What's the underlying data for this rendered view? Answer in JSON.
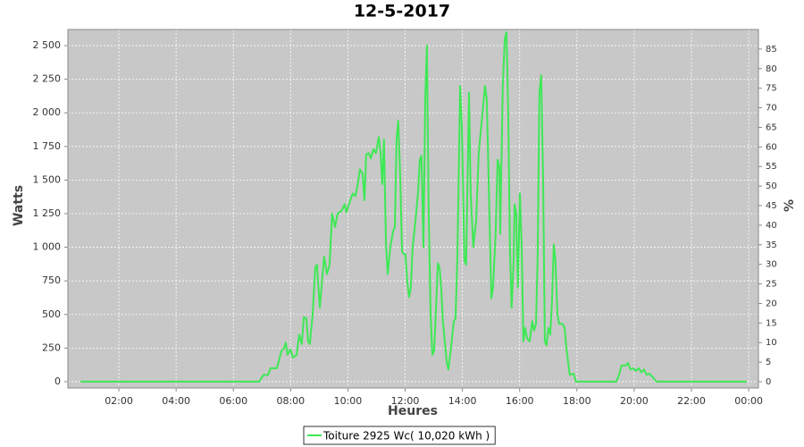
{
  "chart_data": {
    "type": "line",
    "title": "12-5-2017",
    "x_label": "Heures",
    "y_label": "Watts",
    "y2_label": "%",
    "grid": true,
    "legend": "bottom",
    "xlim": [
      0.22,
      24.34
    ],
    "xticks": [
      {
        "value": 2,
        "label": "02:00"
      },
      {
        "value": 4,
        "label": "04:00"
      },
      {
        "value": 6,
        "label": "06:00"
      },
      {
        "value": 8,
        "label": "08:00"
      },
      {
        "value": 10,
        "label": "10:00"
      },
      {
        "value": 12,
        "label": "12:00"
      },
      {
        "value": 14,
        "label": "14:00"
      },
      {
        "value": 16,
        "label": "16:00"
      },
      {
        "value": 18,
        "label": "18:00"
      },
      {
        "value": 20,
        "label": "20:00"
      },
      {
        "value": 22,
        "label": "22:00"
      },
      {
        "value": 24,
        "label": "00:00"
      }
    ],
    "ylim": [
      -47,
      2620
    ],
    "yticks": [
      0,
      250,
      500,
      750,
      {
        "value": 1000,
        "label": "1 000"
      },
      {
        "value": 1250,
        "label": "1 250"
      },
      {
        "value": 1500,
        "label": "1 500"
      },
      {
        "value": 1750,
        "label": "1 750"
      },
      {
        "value": 2000,
        "label": "2 000"
      },
      {
        "value": 2250,
        "label": "2 250"
      },
      {
        "value": 2500,
        "label": "2 500"
      }
    ],
    "y2lim": [
      -1.6,
      90
    ],
    "y2ticks": [
      0,
      5,
      10,
      15,
      20,
      25,
      30,
      35,
      40,
      45,
      50,
      55,
      60,
      65,
      70,
      75,
      80,
      85
    ],
    "x": [
      0.66,
      6.9,
      7.05,
      7.21,
      7.3,
      7.52,
      7.68,
      7.77,
      7.83,
      7.89,
      7.99,
      8.08,
      8.21,
      8.3,
      8.39,
      8.46,
      8.55,
      8.61,
      8.67,
      8.77,
      8.86,
      8.92,
      9.02,
      9.08,
      9.17,
      9.27,
      9.36,
      9.45,
      9.55,
      9.64,
      9.77,
      9.89,
      9.95,
      10.08,
      10.17,
      10.26,
      10.33,
      10.42,
      10.51,
      10.58,
      10.64,
      10.73,
      10.8,
      10.89,
      10.98,
      11.08,
      11.14,
      11.2,
      11.26,
      11.33,
      11.39,
      11.48,
      11.58,
      11.64,
      11.7,
      11.76,
      11.83,
      11.89,
      11.95,
      12.01,
      12.07,
      12.14,
      12.2,
      12.26,
      12.36,
      12.45,
      12.51,
      12.57,
      12.64,
      12.7,
      12.76,
      12.82,
      12.89,
      12.95,
      13.01,
      13.07,
      13.14,
      13.2,
      13.26,
      13.32,
      13.45,
      13.51,
      13.6,
      13.7,
      13.76,
      13.82,
      13.92,
      13.98,
      14.07,
      14.13,
      14.23,
      14.29,
      14.38,
      14.48,
      14.57,
      14.7,
      14.79,
      14.85,
      14.94,
      15.01,
      15.07,
      15.16,
      15.23,
      15.29,
      15.32,
      15.41,
      15.48,
      15.54,
      15.6,
      15.66,
      15.72,
      15.79,
      15.82,
      15.88,
      15.91,
      15.94,
      16.01,
      16.07,
      16.13,
      16.19,
      16.26,
      16.35,
      16.44,
      16.5,
      16.57,
      16.63,
      16.69,
      16.75,
      16.82,
      16.88,
      16.94,
      17.0,
      17.07,
      17.13,
      17.19,
      17.25,
      17.32,
      17.38,
      17.44,
      17.5,
      17.57,
      17.63,
      17.69,
      17.75,
      17.88,
      17.97,
      19.38,
      19.47,
      19.56,
      19.69,
      19.78,
      19.87,
      19.97,
      20.06,
      20.16,
      20.25,
      20.34,
      20.44,
      20.53,
      20.62,
      20.78,
      23.93
    ],
    "series": [
      {
        "name": "Toiture 2925 Wc( 10,020 kWh )",
        "color": "#3ee855",
        "values": [
          0,
          0,
          50,
          50,
          100,
          100,
          230,
          250,
          290,
          200,
          240,
          180,
          200,
          350,
          280,
          480,
          470,
          300,
          280,
          500,
          850,
          870,
          550,
          700,
          930,
          800,
          870,
          1250,
          1150,
          1250,
          1270,
          1320,
          1260,
          1350,
          1400,
          1380,
          1450,
          1580,
          1550,
          1350,
          1690,
          1700,
          1660,
          1730,
          1700,
          1820,
          1700,
          1470,
          1800,
          1020,
          800,
          1000,
          1120,
          1150,
          1800,
          1940,
          1500,
          970,
          950,
          950,
          750,
          630,
          700,
          1000,
          1200,
          1400,
          1650,
          1680,
          1000,
          2100,
          2500,
          1300,
          500,
          200,
          230,
          500,
          880,
          850,
          700,
          450,
          150,
          90,
          250,
          450,
          470,
          900,
          2200,
          1900,
          900,
          870,
          2150,
          1400,
          1000,
          1200,
          1700,
          2000,
          2200,
          2100,
          1300,
          620,
          700,
          1100,
          1650,
          1600,
          1100,
          2200,
          2550,
          2600,
          2000,
          1000,
          550,
          900,
          1320,
          1250,
          950,
          700,
          1400,
          1000,
          300,
          400,
          320,
          300,
          450,
          380,
          430,
          950,
          2150,
          2280,
          1500,
          300,
          270,
          400,
          350,
          600,
          1020,
          900,
          500,
          430,
          430,
          430,
          400,
          250,
          150,
          50,
          60,
          0,
          0,
          50,
          120,
          120,
          140,
          90,
          100,
          80,
          100,
          70,
          90,
          50,
          60,
          40,
          0,
          0
        ]
      }
    ]
  }
}
